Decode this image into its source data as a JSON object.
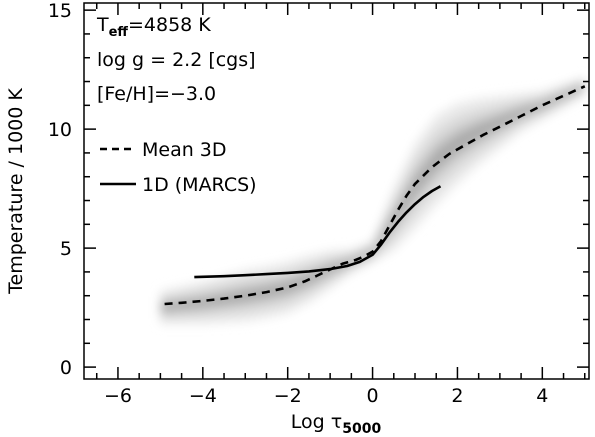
{
  "chart_data": {
    "type": "line",
    "title": "",
    "xlabel": {
      "main": "Log τ",
      "sub": "5000"
    },
    "ylabel": "Temperature / 1000 K",
    "xlim": [
      -6.8,
      5.1
    ],
    "ylim": [
      -0.5,
      15.3
    ],
    "grid": false,
    "x_ticks": [
      -6,
      -4,
      -2,
      0,
      2,
      4
    ],
    "x_tick_labels": [
      "−6",
      "−4",
      "−2",
      "0",
      "2",
      "4"
    ],
    "y_ticks": [
      0,
      5,
      10,
      15
    ],
    "y_tick_labels": [
      "0",
      "5",
      "10",
      "15"
    ],
    "annotations": {
      "teff": {
        "main": "T",
        "sub": "eff",
        "rest": "=4858 K"
      },
      "logg": "log g = 2.2 [cgs]",
      "feh": "[Fe/H]=−3.0"
    },
    "legend_placement": "upper-left",
    "series": [
      {
        "name": "Mean 3D",
        "style": "dashed",
        "color": "#000000",
        "x": [
          -4.9,
          -4.5,
          -4.0,
          -3.5,
          -3.0,
          -2.5,
          -2.0,
          -1.6,
          -1.3,
          -1.0,
          -0.7,
          -0.4,
          -0.2,
          0.0,
          0.2,
          0.4,
          0.6,
          0.8,
          1.0,
          1.4,
          1.8,
          2.2,
          2.6,
          3.0,
          3.5,
          4.0,
          4.5,
          5.0
        ],
        "y": [
          2.65,
          2.7,
          2.78,
          2.88,
          3.0,
          3.15,
          3.35,
          3.6,
          3.85,
          4.1,
          4.35,
          4.5,
          4.65,
          4.85,
          5.3,
          5.95,
          6.6,
          7.2,
          7.7,
          8.4,
          8.95,
          9.35,
          9.75,
          10.1,
          10.55,
          11.0,
          11.4,
          11.8
        ]
      },
      {
        "name": "1D (MARCS)",
        "style": "solid",
        "color": "#000000",
        "x": [
          -4.2,
          -3.5,
          -3.0,
          -2.5,
          -2.0,
          -1.5,
          -1.0,
          -0.6,
          -0.3,
          0.0,
          0.2,
          0.4,
          0.6,
          0.8,
          1.0,
          1.2,
          1.4,
          1.6
        ],
        "y": [
          3.78,
          3.82,
          3.86,
          3.91,
          3.96,
          4.02,
          4.12,
          4.25,
          4.42,
          4.72,
          5.15,
          5.65,
          6.1,
          6.5,
          6.85,
          7.15,
          7.4,
          7.6
        ]
      }
    ],
    "background_distribution": {
      "description": "grey 2D histogram of 3D temperature vs optical depth",
      "center_x": [
        -5.0,
        -4.5,
        -4.0,
        -3.5,
        -3.0,
        -2.5,
        -2.0,
        -1.5,
        -1.0,
        -0.5,
        0.0,
        0.5,
        1.0,
        1.5,
        2.0,
        2.5,
        3.0,
        3.5,
        4.0,
        4.5,
        5.0
      ],
      "center_y": [
        2.5,
        2.6,
        2.7,
        2.85,
        3.0,
        3.15,
        3.35,
        3.7,
        4.1,
        4.45,
        4.85,
        6.2,
        7.6,
        8.7,
        9.4,
        9.9,
        10.3,
        10.7,
        11.0,
        11.4,
        11.8
      ],
      "spread_y": [
        0.7,
        0.8,
        0.9,
        1.0,
        1.1,
        1.1,
        1.1,
        1.0,
        0.8,
        0.5,
        0.45,
        1.3,
        1.8,
        1.9,
        1.7,
        1.4,
        1.1,
        0.8,
        0.6,
        0.5,
        0.4
      ]
    }
  }
}
